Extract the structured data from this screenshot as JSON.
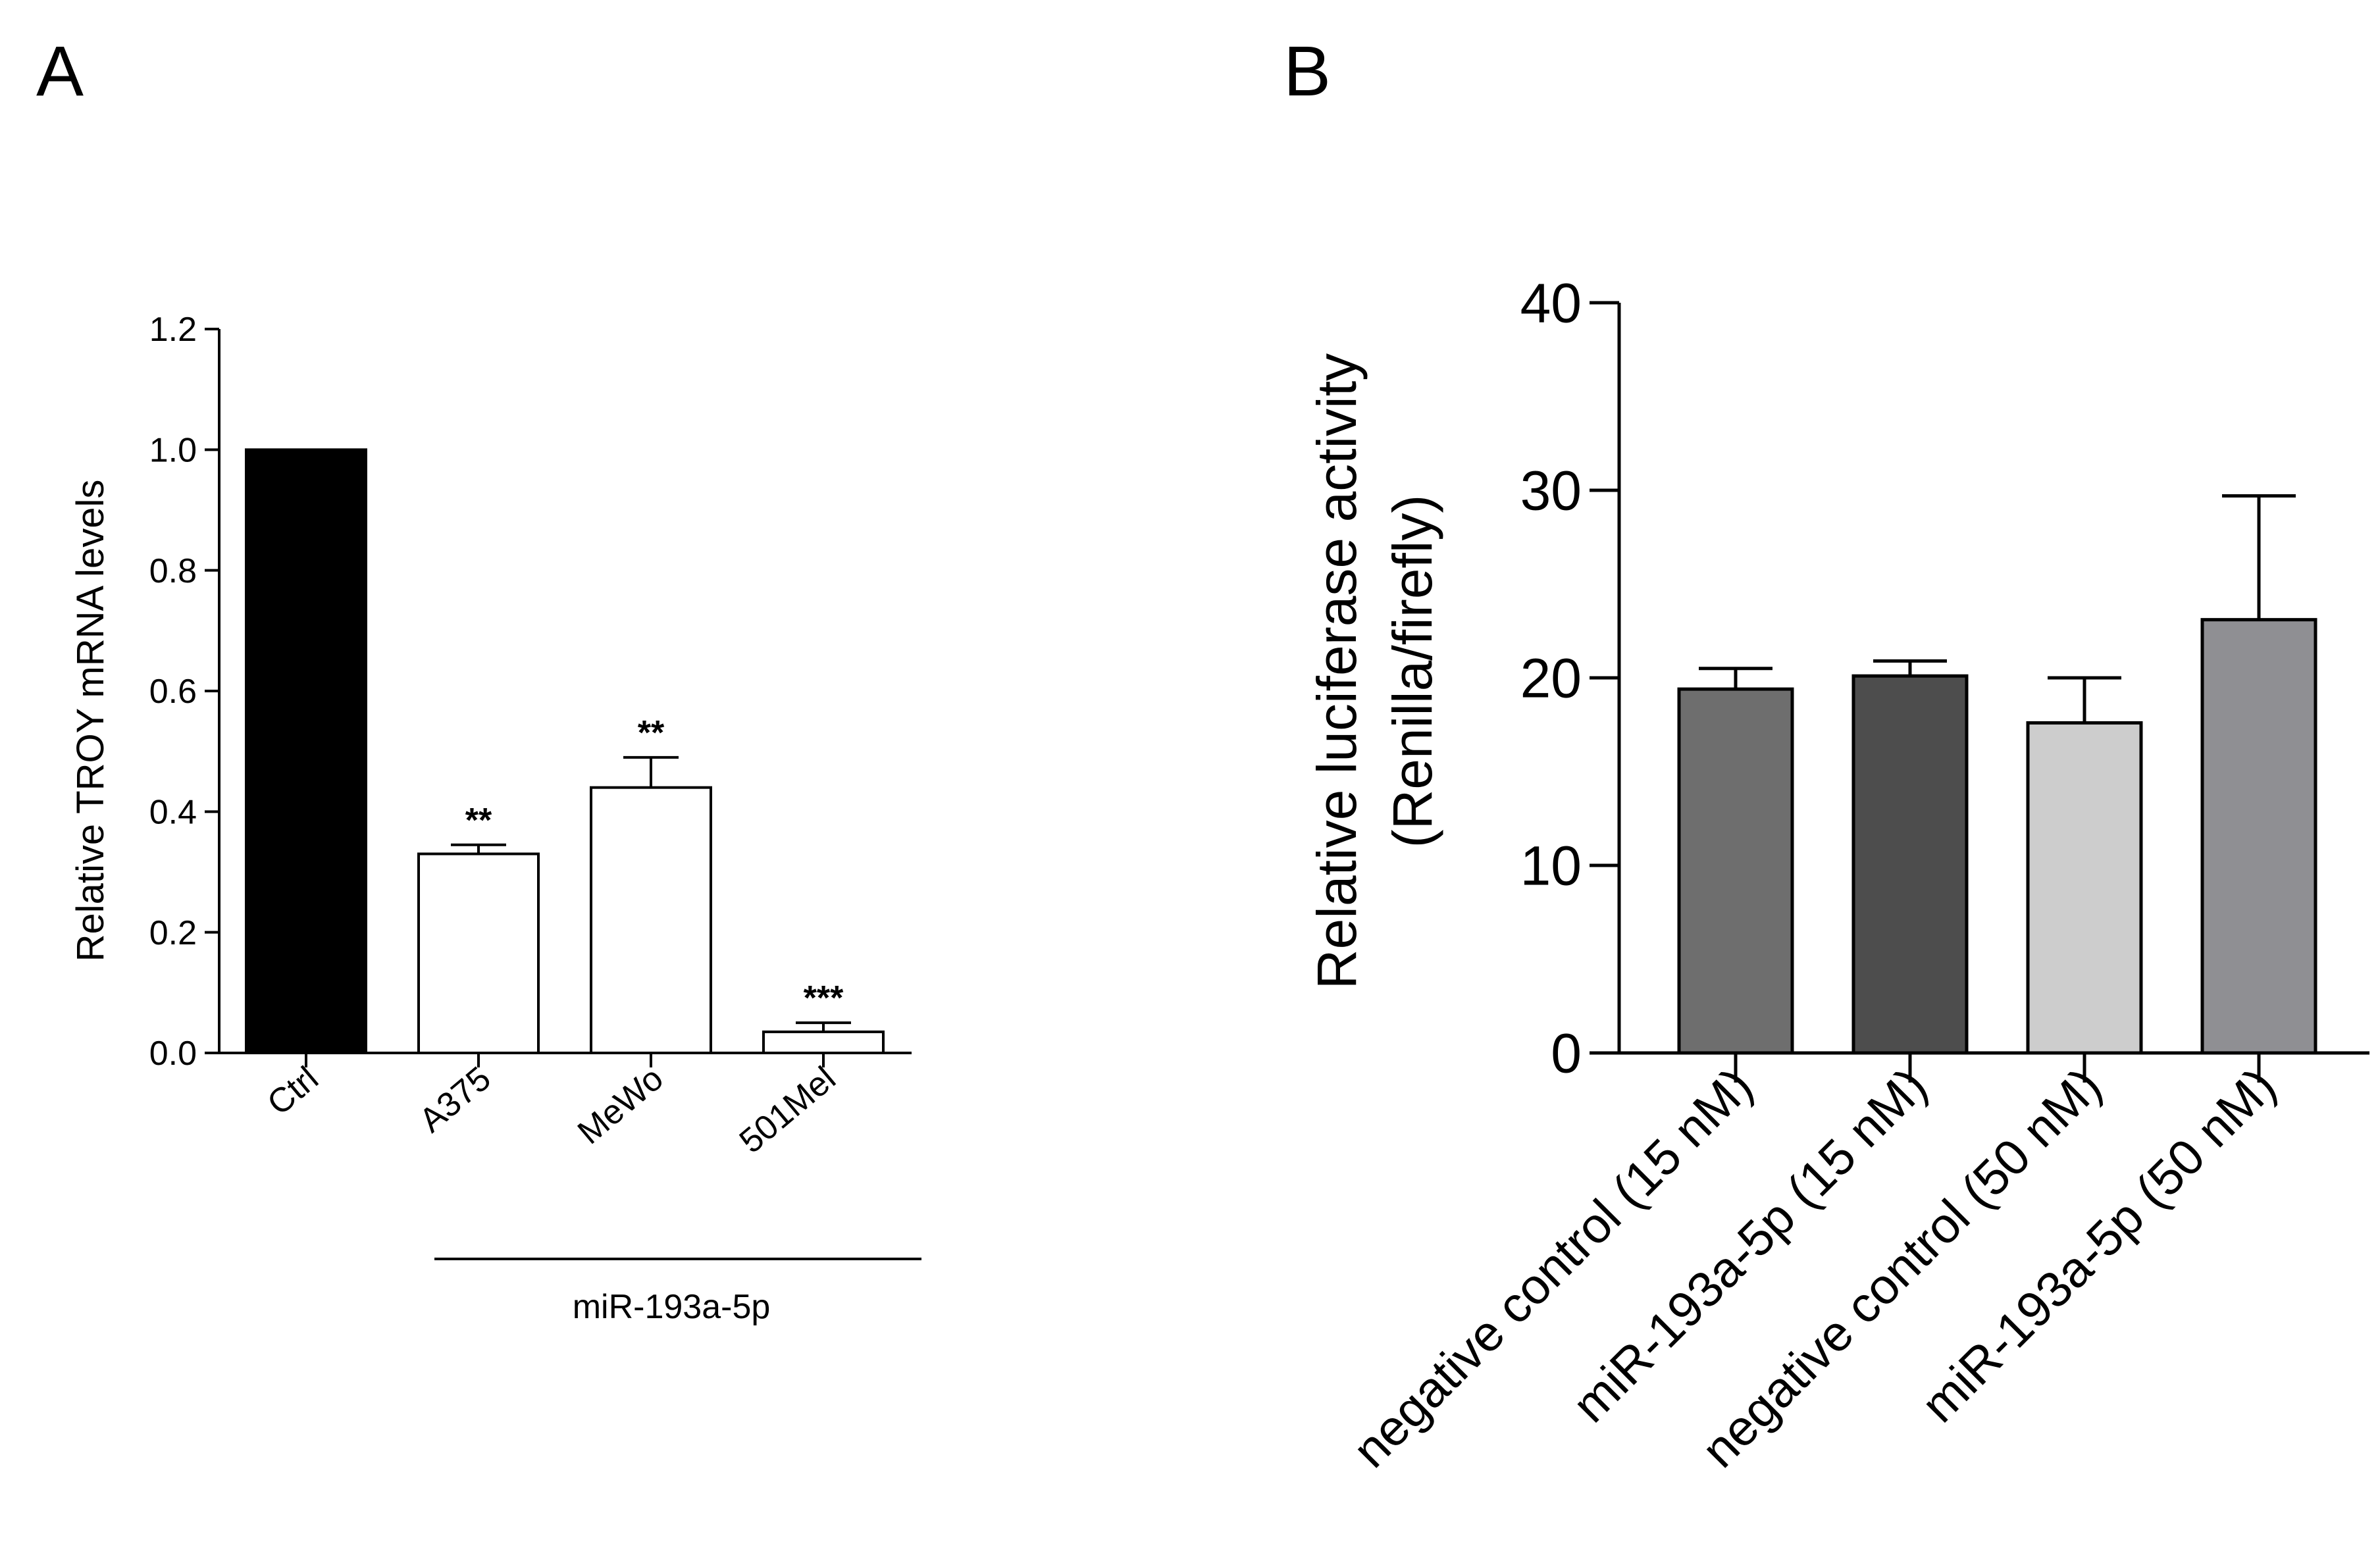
{
  "panels": {
    "a_letter": "A",
    "b_letter": "B"
  },
  "chart_data": [
    {
      "type": "bar",
      "panel": "A",
      "categories": [
        "Ctrl",
        "A375",
        "MeWo",
        "501Mel"
      ],
      "values": [
        1.0,
        0.33,
        0.44,
        0.035
      ],
      "errors": [
        0,
        0.015,
        0.05,
        0.015
      ],
      "fills": [
        "#000000",
        "#ffffff",
        "#ffffff",
        "#ffffff"
      ],
      "significance": [
        "",
        "**",
        "**",
        "***"
      ],
      "ylabel": "Relative TROY mRNA levels",
      "xlabel": "",
      "ylim": [
        0,
        1.2
      ],
      "yticks": [
        0.0,
        0.2,
        0.4,
        0.6,
        0.8,
        1.0,
        1.2
      ],
      "ytick_labels": [
        "0.0",
        "0.2",
        "0.4",
        "0.6",
        "0.8",
        "1.0",
        "1.2"
      ],
      "group_label": "miR-193a-5p",
      "group_categories": [
        "A375",
        "MeWo",
        "501Mel"
      ],
      "grid": false
    },
    {
      "type": "bar",
      "panel": "B",
      "categories": [
        "negative control (15 nM)",
        "miR-193a-5p (15 nM)",
        "negative control (50 nM)",
        "miR-193a-5p (50 nM)"
      ],
      "values": [
        19.4,
        20.1,
        17.6,
        23.1
      ],
      "errors": [
        1.1,
        0.8,
        2.4,
        6.6
      ],
      "fills": [
        "#6e6e6e",
        "#4d4d4d",
        "#cdcdcd",
        "#8f8f93"
      ],
      "ylabel": "Relative luciferase activity",
      "ylabel2": "(Renilla/firefly)",
      "xlabel": "",
      "ylim": [
        0,
        40
      ],
      "yticks": [
        0,
        10,
        20,
        30,
        40
      ],
      "ytick_labels": [
        "0",
        "10",
        "20",
        "30",
        "40"
      ],
      "grid": false
    }
  ]
}
